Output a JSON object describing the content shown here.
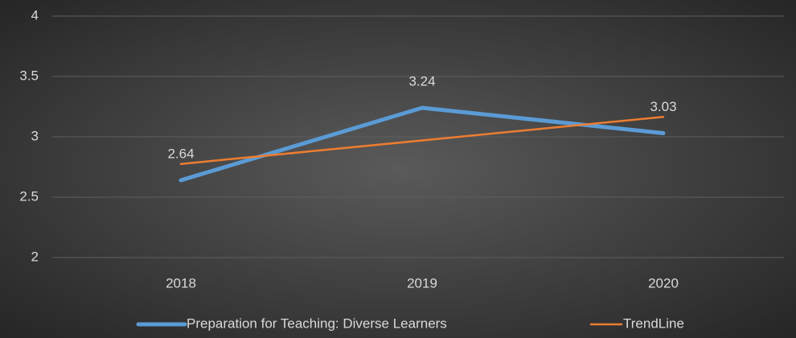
{
  "chart_data": {
    "type": "line",
    "categories": [
      "2018",
      "2019",
      "2020"
    ],
    "series": [
      {
        "name": "Preparation for Teaching: Diverse Learners",
        "color": "#5b9bd5",
        "values": [
          2.64,
          3.24,
          3.03
        ],
        "data_labels": true
      },
      {
        "name": "TrendLine",
        "color": "#ed7d31",
        "values": [
          2.775,
          2.97,
          3.165
        ],
        "data_labels": false
      }
    ],
    "ylim": [
      2,
      4
    ],
    "yticks": [
      2,
      2.5,
      3,
      3.5,
      4
    ],
    "grid": true,
    "legend": "bottom"
  }
}
